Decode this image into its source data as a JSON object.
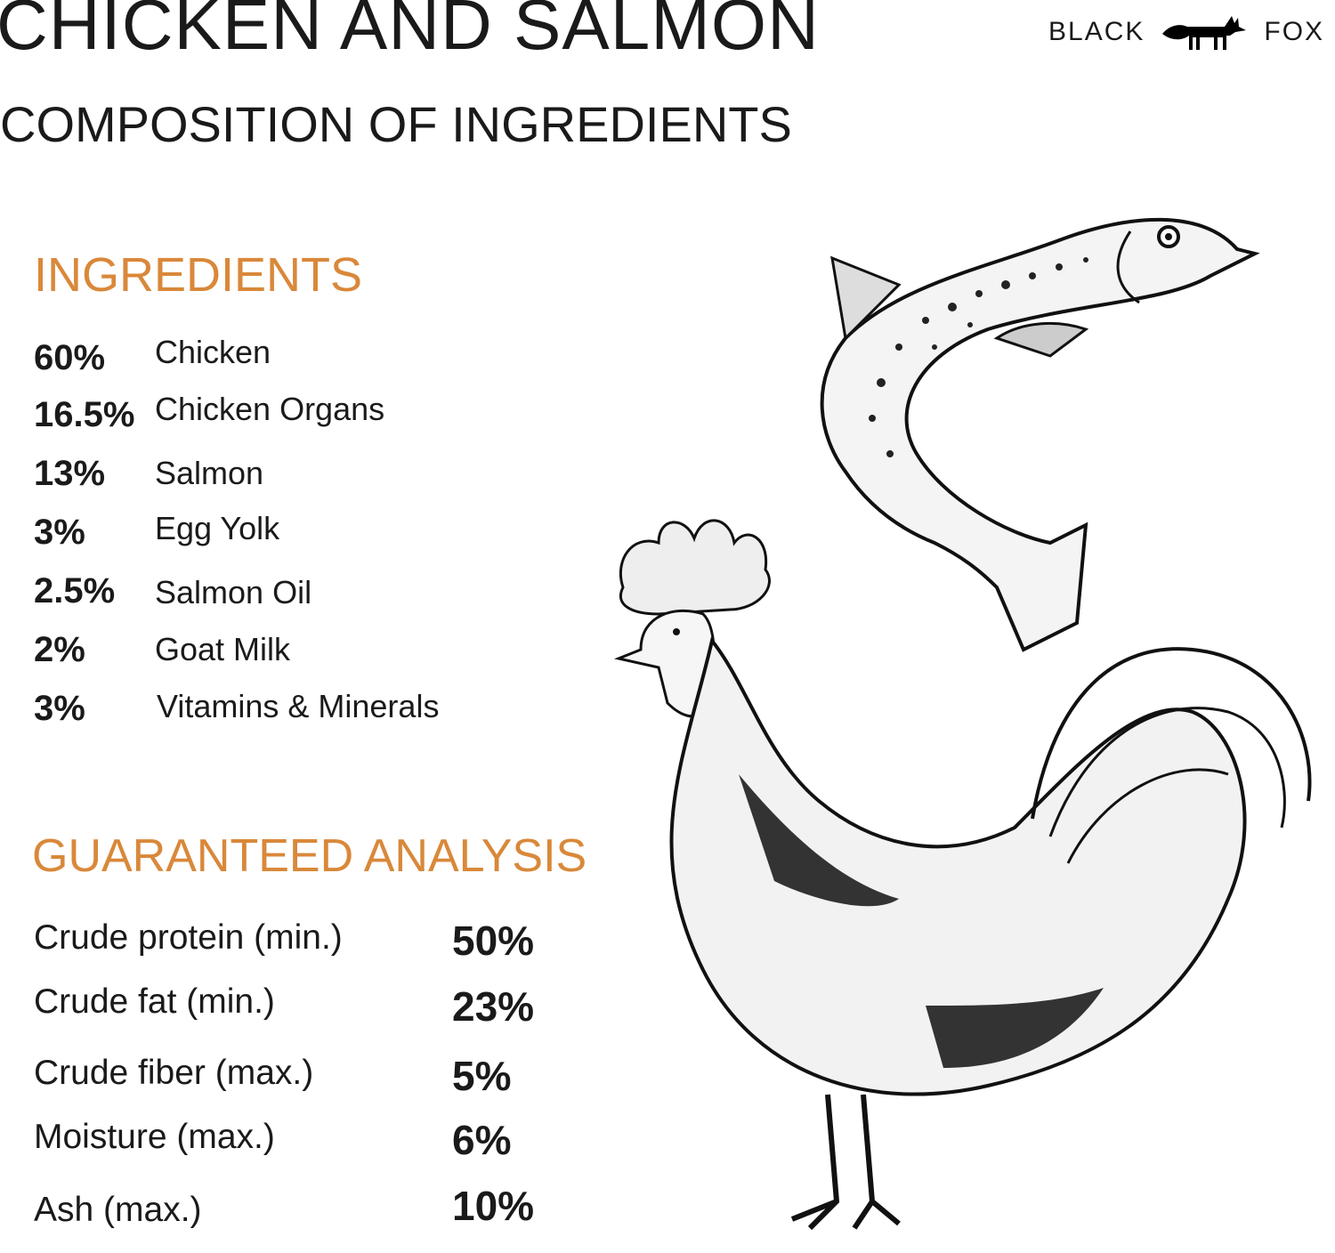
{
  "header": {
    "title": "CHICKEN AND SALMON",
    "subtitle": "COMPOSITION OF INGREDIENTS"
  },
  "logo": {
    "left_text": "BLACK",
    "right_text": "FOX",
    "icon": "fox-icon"
  },
  "ingredients": {
    "heading": "INGREDIENTS",
    "items": [
      {
        "pct": "60%",
        "name": "Chicken"
      },
      {
        "pct": "16.5%",
        "name": "Chicken Organs"
      },
      {
        "pct": "13%",
        "name": "Salmon"
      },
      {
        "pct": "3%",
        "name": "Egg Yolk"
      },
      {
        "pct": "2.5%",
        "name": "Salmon Oil"
      },
      {
        "pct": "2%",
        "name": "Goat Milk"
      },
      {
        "pct": "3%",
        "name": "Vitamins & Minerals"
      }
    ]
  },
  "analysis": {
    "heading": "GUARANTEED ANALYSIS",
    "items": [
      {
        "label": "Crude protein (min.)",
        "value": "50%"
      },
      {
        "label": "Crude fat (min.)",
        "value": "23%"
      },
      {
        "label": "Crude fiber (max.)",
        "value": "5%"
      },
      {
        "label": "Moisture (max.)",
        "value": "6%"
      },
      {
        "label": "Ash (max.)",
        "value": "10%"
      }
    ]
  },
  "colors": {
    "accent": "#d9883a",
    "text": "#1a1a1a",
    "background": "#ffffff"
  },
  "illustrations": [
    "salmon-illustration",
    "rooster-illustration"
  ]
}
